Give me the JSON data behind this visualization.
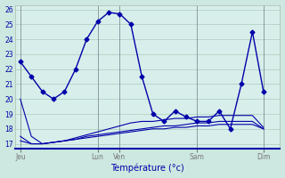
{
  "background_color": "#cce8d4",
  "plot_bg": "#d8eee8",
  "grid_color": "#aaccbb",
  "line_color": "#0000aa",
  "title": "Température (°c)",
  "ylabel_ticks": [
    17,
    18,
    19,
    20,
    21,
    22,
    23,
    24,
    25,
    26
  ],
  "ylim": [
    16.7,
    26.3
  ],
  "xtick_labels": [
    "Jeu",
    "Lun",
    "Ven",
    "Sam",
    "Dim"
  ],
  "xtick_positions": [
    0,
    7,
    9,
    16,
    22
  ],
  "xlim": [
    -0.5,
    23.5
  ],
  "series_main_x": [
    0,
    1,
    2,
    3,
    4,
    5,
    6,
    7,
    8,
    9,
    10,
    11,
    12,
    13,
    14,
    15,
    16,
    17,
    18,
    19,
    20,
    21,
    22
  ],
  "series_main_y": [
    22.5,
    21.5,
    20.5,
    20.0,
    20.5,
    22.0,
    24.0,
    25.2,
    25.8,
    25.7,
    25.0,
    21.5,
    19.0,
    18.5,
    19.2,
    18.8,
    18.5,
    18.5,
    19.2,
    18.0,
    21.0,
    24.5,
    20.5
  ],
  "series_min1_x": [
    0,
    1,
    2,
    3,
    4,
    5,
    6,
    7,
    8,
    9,
    10,
    11,
    12,
    13,
    14,
    15,
    16,
    17,
    18,
    19,
    20,
    21,
    22
  ],
  "series_min1_y": [
    20.0,
    17.5,
    17.0,
    17.1,
    17.2,
    17.4,
    17.6,
    17.8,
    18.0,
    18.2,
    18.4,
    18.5,
    18.5,
    18.6,
    18.7,
    18.7,
    18.8,
    18.8,
    18.9,
    18.9,
    18.9,
    18.9,
    18.1
  ],
  "series_min2_x": [
    0,
    1,
    2,
    3,
    4,
    5,
    6,
    7,
    8,
    9,
    10,
    11,
    12,
    13,
    14,
    15,
    16,
    17,
    18,
    19,
    20,
    21,
    22
  ],
  "series_min2_y": [
    17.5,
    17.0,
    17.0,
    17.1,
    17.2,
    17.3,
    17.5,
    17.6,
    17.7,
    17.8,
    17.9,
    18.0,
    18.1,
    18.2,
    18.2,
    18.3,
    18.4,
    18.4,
    18.5,
    18.5,
    18.5,
    18.5,
    18.0
  ],
  "series_min3_x": [
    0,
    1,
    2,
    3,
    4,
    5,
    6,
    7,
    8,
    9,
    10,
    11,
    12,
    13,
    14,
    15,
    16,
    17,
    18,
    19,
    20,
    21,
    22
  ],
  "series_min3_y": [
    17.2,
    17.0,
    17.0,
    17.1,
    17.2,
    17.3,
    17.4,
    17.5,
    17.6,
    17.7,
    17.8,
    17.9,
    18.0,
    18.0,
    18.1,
    18.1,
    18.2,
    18.2,
    18.3,
    18.3,
    18.3,
    18.3,
    18.0
  ]
}
